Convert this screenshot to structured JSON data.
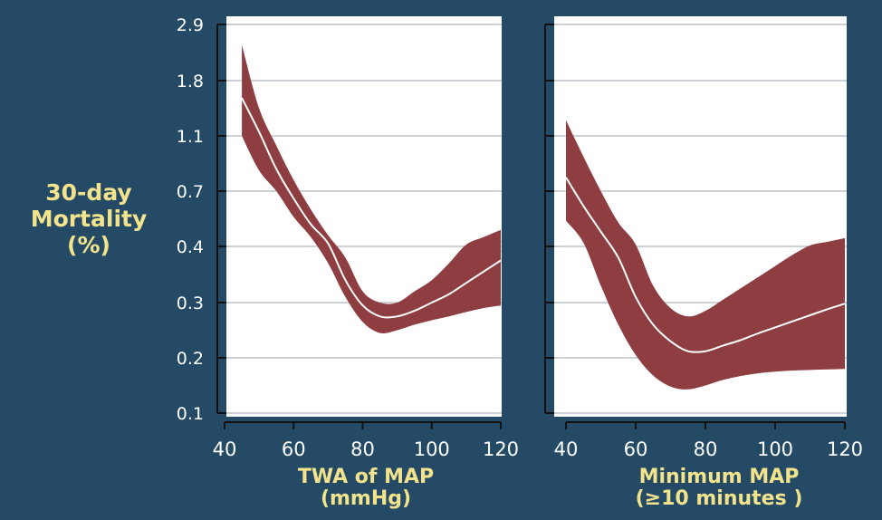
{
  "style": {
    "background": "#244a65",
    "plot_background": "#ffffff",
    "band_color": "#8e3d40",
    "line_color": "#ffffff",
    "grid_color": "#9aa6b0",
    "axis_color": "#111111",
    "tick_text_color": "#ffffff",
    "label_color": "#f2e38c"
  },
  "y_axis": {
    "label_lines": [
      "30-day",
      "Mortality",
      "(%)"
    ],
    "ticks": [
      "0.1",
      "0.2",
      "0.3",
      "0.4",
      "0.7",
      "1.1",
      "1.8",
      "2.9"
    ]
  },
  "chart_data": [
    {
      "type": "line",
      "xlabel_lines": [
        "TWA of MAP",
        "(mmHg)"
      ],
      "xlim": [
        40,
        120
      ],
      "xticks": [
        40,
        60,
        80,
        100,
        120
      ],
      "ylabel": "30-day Mortality (%)",
      "yticks": [
        "0.1",
        "0.2",
        "0.3",
        "0.4",
        "0.7",
        "1.1",
        "1.8",
        "2.9"
      ],
      "grid": true,
      "series": [
        {
          "role": "estimate",
          "x": [
            45,
            50,
            55,
            60,
            65,
            70,
            75,
            80,
            85,
            90,
            95,
            100,
            105,
            110,
            115,
            120
          ],
          "y": [
            1.58,
            1.15,
            0.86,
            0.66,
            0.52,
            0.415,
            0.34,
            0.295,
            0.275,
            0.275,
            0.285,
            0.3,
            0.315,
            0.335,
            0.355,
            0.375
          ]
        },
        {
          "role": "upper_ci",
          "x": [
            45,
            50,
            55,
            60,
            65,
            70,
            75,
            80,
            85,
            90,
            95,
            100,
            105,
            110,
            115,
            120
          ],
          "y": [
            2.5,
            1.45,
            1.03,
            0.78,
            0.6,
            0.46,
            0.38,
            0.32,
            0.3,
            0.3,
            0.32,
            0.34,
            0.37,
            0.41,
            0.45,
            0.49
          ]
        },
        {
          "role": "lower_ci",
          "x": [
            45,
            50,
            55,
            60,
            65,
            70,
            75,
            80,
            85,
            90,
            95,
            100,
            105,
            110,
            115,
            120
          ],
          "y": [
            1.1,
            0.85,
            0.7,
            0.56,
            0.45,
            0.37,
            0.31,
            0.265,
            0.245,
            0.25,
            0.26,
            0.268,
            0.275,
            0.283,
            0.29,
            0.295
          ]
        }
      ]
    },
    {
      "type": "line",
      "xlabel_lines": [
        "Minimum MAP",
        "(≥10 minutes )"
      ],
      "xlim": [
        40,
        120
      ],
      "xticks": [
        40,
        60,
        80,
        100,
        120
      ],
      "ylabel": "30-day Mortality (%)",
      "yticks": [
        "0.1",
        "0.2",
        "0.3",
        "0.4",
        "0.7",
        "1.1",
        "1.8",
        "2.9"
      ],
      "grid": true,
      "series": [
        {
          "role": "estimate",
          "x": [
            40,
            45,
            50,
            55,
            60,
            65,
            70,
            75,
            80,
            85,
            90,
            95,
            100,
            105,
            110,
            115,
            120
          ],
          "y": [
            0.8,
            0.62,
            0.48,
            0.38,
            0.31,
            0.26,
            0.23,
            0.212,
            0.212,
            0.222,
            0.232,
            0.244,
            0.255,
            0.266,
            0.277,
            0.288,
            0.298
          ]
        },
        {
          "role": "upper_ci",
          "x": [
            40,
            45,
            50,
            55,
            60,
            65,
            70,
            75,
            80,
            85,
            90,
            95,
            100,
            105,
            110,
            115,
            120
          ],
          "y": [
            1.3,
            0.95,
            0.7,
            0.53,
            0.41,
            0.33,
            0.29,
            0.275,
            0.285,
            0.305,
            0.325,
            0.345,
            0.365,
            0.385,
            0.405,
            0.425,
            0.445
          ]
        },
        {
          "role": "lower_ci",
          "x": [
            40,
            45,
            50,
            55,
            60,
            65,
            70,
            75,
            80,
            85,
            90,
            95,
            100,
            105,
            110,
            115,
            120
          ],
          "y": [
            0.54,
            0.42,
            0.33,
            0.26,
            0.205,
            0.168,
            0.148,
            0.143,
            0.15,
            0.16,
            0.167,
            0.172,
            0.175,
            0.177,
            0.178,
            0.179,
            0.18
          ]
        }
      ]
    }
  ]
}
